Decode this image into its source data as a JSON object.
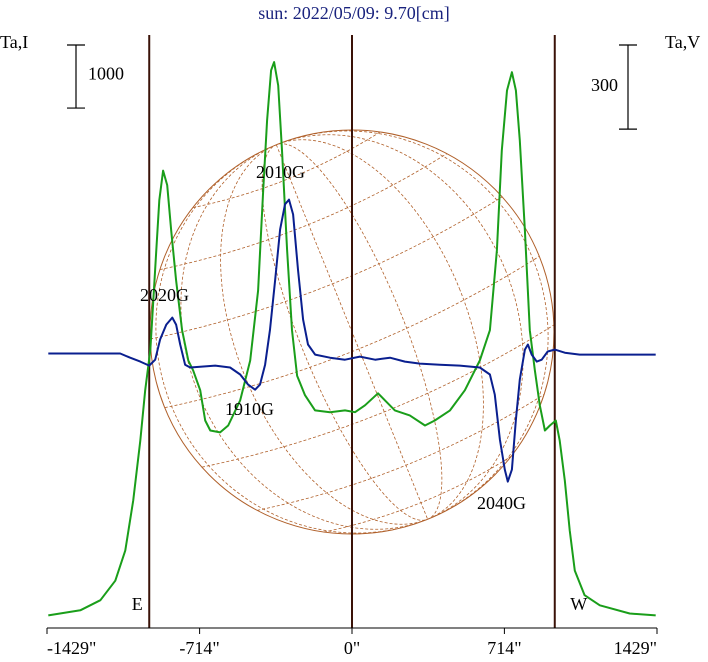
{
  "chart_data": {
    "type": "line",
    "title": "sun: 2022/05/09: 9.70[cm]",
    "y_label": "Ta,I",
    "y2_label": "Ta,V",
    "xlim": [
      -1429,
      1429
    ],
    "ylim": [
      -200,
      9200
    ],
    "y2lim": [
      -975,
      1140
    ],
    "xticks": [
      {
        "value": -1429,
        "label": "-1429\""
      },
      {
        "value": -714,
        "label": "-714\""
      },
      {
        "value": 0,
        "label": "0\""
      },
      {
        "value": 714,
        "label": "714\""
      },
      {
        "value": 1429,
        "label": "1429\""
      }
    ],
    "scale_bars": [
      {
        "axis": "y",
        "value": 1000
      },
      {
        "axis": "y2",
        "value": 300
      }
    ],
    "markers": [
      {
        "value": -950,
        "label": "E"
      },
      {
        "value": 0
      },
      {
        "value": 950,
        "label": "W"
      }
    ],
    "annotations": [
      "2020G",
      "2010G",
      "1910G",
      "2040G"
    ],
    "series": [
      {
        "name": "I",
        "color": "#1a9e1a",
        "axis": "y",
        "x": [
          -1423,
          -1273,
          -1179,
          -1109,
          -1062,
          -1025,
          -992,
          -969,
          -945,
          -931,
          -917,
          -903,
          -885,
          -866,
          -847,
          -824,
          -796,
          -767,
          -744,
          -711,
          -688,
          -664,
          -618,
          -580,
          -524,
          -477,
          -440,
          -416,
          -398,
          -379,
          -365,
          -346,
          -328,
          -304,
          -281,
          -257,
          -220,
          -173,
          -103,
          -33,
          14,
          61,
          122,
          154,
          201,
          271,
          342,
          388,
          459,
          529,
          599,
          646,
          679,
          702,
          726,
          749,
          768,
          786,
          810,
          833,
          857,
          880,
          904,
          927,
          955,
          973,
          997,
          1020,
          1044,
          1090,
          1161,
          1301,
          1423
        ],
        "values": [
          0,
          80,
          240,
          550,
          1030,
          1820,
          2770,
          3570,
          4200,
          4990,
          5790,
          6580,
          7050,
          6820,
          6100,
          5310,
          4520,
          4040,
          3880,
          3570,
          3090,
          2930,
          2900,
          3010,
          3410,
          4040,
          5150,
          6740,
          7850,
          8640,
          8770,
          8400,
          7370,
          5790,
          4520,
          3800,
          3490,
          3250,
          3220,
          3250,
          3220,
          3330,
          3520,
          3410,
          3250,
          3170,
          3010,
          3090,
          3250,
          3570,
          4040,
          4520,
          5790,
          7370,
          8320,
          8610,
          8320,
          7530,
          6100,
          4520,
          3880,
          3330,
          2930,
          3010,
          3090,
          2770,
          2140,
          1350,
          710,
          320,
          160,
          30,
          0
        ]
      },
      {
        "name": "V",
        "color": "#0a1f8f",
        "axis": "y2",
        "x": [
          -1423,
          -1086,
          -1039,
          -992,
          -950,
          -922,
          -899,
          -870,
          -842,
          -824,
          -805,
          -782,
          -758,
          -711,
          -641,
          -571,
          -524,
          -487,
          -454,
          -431,
          -407,
          -384,
          -360,
          -337,
          -314,
          -295,
          -276,
          -253,
          -229,
          -206,
          -173,
          -103,
          -33,
          37,
          108,
          178,
          248,
          318,
          412,
          505,
          599,
          646,
          669,
          693,
          716,
          730,
          749,
          768,
          786,
          810,
          824,
          842,
          866,
          889,
          917,
          950,
          997,
          1067,
          1423
        ],
        "values": [
          4,
          4,
          -11,
          -25,
          -39,
          -18,
          54,
          107,
          132,
          107,
          36,
          -36,
          -46,
          -43,
          -39,
          -46,
          -71,
          -107,
          -125,
          -107,
          -36,
          89,
          268,
          446,
          536,
          553,
          500,
          303,
          125,
          36,
          0,
          -11,
          -18,
          -7,
          -18,
          -11,
          -25,
          -32,
          -36,
          -39,
          -46,
          -71,
          -143,
          -303,
          -410,
          -453,
          -410,
          -232,
          -89,
          18,
          36,
          0,
          -25,
          -18,
          11,
          18,
          7,
          0,
          0
        ]
      }
    ]
  }
}
